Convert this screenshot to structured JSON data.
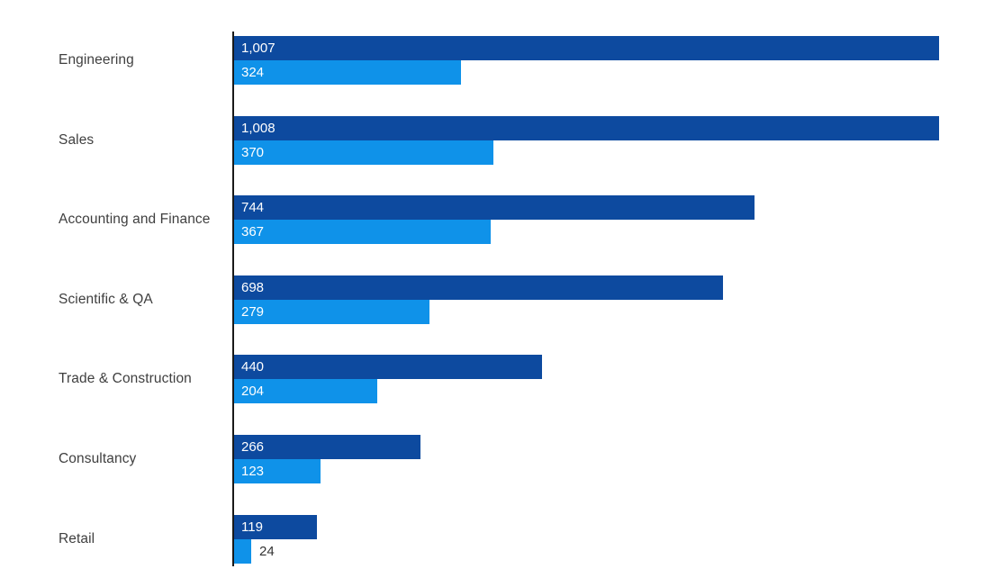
{
  "chart_data": {
    "type": "bar",
    "orientation": "horizontal",
    "title": "",
    "xlabel": "",
    "ylabel": "",
    "grid": false,
    "legend": false,
    "xlim": [
      0,
      1073
    ],
    "axis_color": "#1a1a1a",
    "label_color": "#3f3f3f",
    "categories": [
      "Engineering",
      "Sales",
      "Accounting and Finance",
      "Scientific & QA",
      "Trade & Construction",
      "Consultancy",
      "Retail"
    ],
    "series": [
      {
        "name": "series-dark-blue",
        "color": "#0d4a9f",
        "values": [
          1007,
          1008,
          744,
          698,
          440,
          266,
          119
        ],
        "labels": [
          "1,007",
          "1,008",
          "744",
          "698",
          "440",
          "266",
          "119"
        ]
      },
      {
        "name": "series-light-blue",
        "color": "#0f92e9",
        "values": [
          324,
          370,
          367,
          279,
          204,
          123,
          24
        ],
        "labels": [
          "324",
          "370",
          "367",
          "279",
          "204",
          "123",
          "24"
        ]
      }
    ]
  }
}
